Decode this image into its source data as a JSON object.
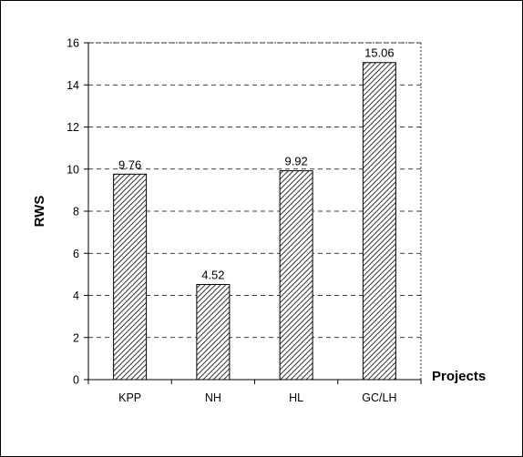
{
  "chart_data": {
    "type": "bar",
    "title": "",
    "xlabel": "Projects",
    "ylabel": "RWS",
    "categories": [
      "KPP",
      "NH",
      "HL",
      "GC/LH"
    ],
    "values": [
      9.76,
      4.52,
      9.92,
      15.06
    ],
    "value_labels": [
      "9.76",
      "4.52",
      "9.92",
      "15.06"
    ],
    "ylim": [
      0,
      16
    ],
    "yticks": [
      "0",
      "2",
      "4",
      "6",
      "8",
      "10",
      "12",
      "14",
      "16"
    ],
    "grid": true,
    "legend": "none",
    "bar_fill": "diagonal-hatch",
    "colors": {
      "bar_stroke": "#000000",
      "hatch": "#000000",
      "bar_background": "#ffffff",
      "grid": "#000000",
      "frame": "#000000"
    }
  }
}
